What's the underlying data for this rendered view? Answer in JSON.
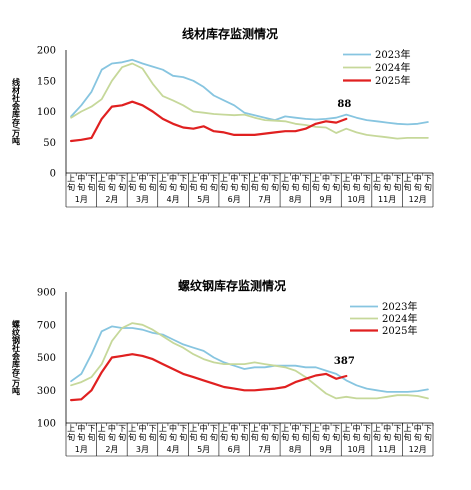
{
  "chart_data": [
    {
      "type": "line",
      "title": "线材库存监测情况",
      "ylabel": "线材社会库存/万吨",
      "ylim": [
        0,
        200
      ],
      "yticks": [
        0,
        50,
        100,
        150,
        200
      ],
      "x_sub_labels": [
        "上\n旬",
        "中\n旬",
        "下\n旬"
      ],
      "months": [
        "1月",
        "2月",
        "3月",
        "4月",
        "5月",
        "6月",
        "7月",
        "8月",
        "9月",
        "10月",
        "11月",
        "12月"
      ],
      "legend_position": "top-right",
      "series": [
        {
          "name": "2023年",
          "color": "#87c5e0",
          "values": [
            92,
            110,
            132,
            168,
            178,
            180,
            184,
            178,
            173,
            168,
            158,
            156,
            150,
            140,
            126,
            118,
            110,
            98,
            94,
            90,
            86,
            92,
            90,
            88,
            87,
            88,
            90,
            95,
            90,
            86,
            84,
            82,
            80,
            79,
            80,
            83
          ]
        },
        {
          "name": "2024年",
          "color": "#c6d89a",
          "values": [
            90,
            100,
            108,
            120,
            150,
            172,
            178,
            170,
            145,
            125,
            118,
            110,
            100,
            98,
            96,
            95,
            94,
            95,
            90,
            86,
            85,
            84,
            80,
            78,
            75,
            74,
            65,
            72,
            66,
            62,
            60,
            58,
            56,
            57,
            57,
            57
          ]
        },
        {
          "name": "2025年",
          "color": "#e02020",
          "values": [
            52,
            54,
            57,
            88,
            108,
            110,
            116,
            110,
            100,
            88,
            80,
            74,
            72,
            76,
            68,
            66,
            62,
            62,
            62,
            64,
            66,
            68,
            68,
            72,
            80,
            84,
            82,
            88
          ]
        }
      ],
      "annotation": {
        "text": "88",
        "series": "2025年",
        "index": 27
      }
    },
    {
      "type": "line",
      "title": "螺纹钢库存监测情况",
      "ylabel": "螺纹钢社会库存/万吨",
      "ylim": [
        100,
        900
      ],
      "yticks": [
        100,
        300,
        500,
        700,
        900
      ],
      "x_sub_labels": [
        "上\n旬",
        "中\n旬",
        "下\n旬"
      ],
      "months": [
        "1月",
        "2月",
        "3月",
        "4月",
        "5月",
        "6月",
        "7月",
        "8月",
        "9月",
        "10月",
        "11月",
        "12月"
      ],
      "legend_position": "top-right",
      "series": [
        {
          "name": "2023年",
          "color": "#87c5e0",
          "values": [
            355,
            400,
            520,
            660,
            690,
            680,
            680,
            670,
            650,
            640,
            610,
            580,
            560,
            540,
            500,
            470,
            450,
            430,
            440,
            440,
            450,
            450,
            450,
            440,
            440,
            420,
            400,
            360,
            330,
            310,
            300,
            290,
            290,
            290,
            295,
            305
          ]
        },
        {
          "name": "2024年",
          "color": "#c6d89a",
          "values": [
            330,
            350,
            380,
            460,
            600,
            680,
            710,
            700,
            670,
            630,
            590,
            560,
            520,
            490,
            470,
            460,
            460,
            460,
            470,
            460,
            450,
            440,
            420,
            380,
            330,
            280,
            250,
            260,
            250,
            250,
            250,
            260,
            270,
            270,
            265,
            250
          ]
        },
        {
          "name": "2025年",
          "color": "#e02020",
          "values": [
            240,
            245,
            300,
            410,
            500,
            510,
            520,
            510,
            490,
            460,
            430,
            400,
            380,
            360,
            340,
            320,
            310,
            300,
            300,
            305,
            310,
            320,
            350,
            370,
            390,
            400,
            370,
            387
          ]
        }
      ],
      "annotation": {
        "text": "387",
        "series": "2025年",
        "index": 27
      }
    }
  ]
}
